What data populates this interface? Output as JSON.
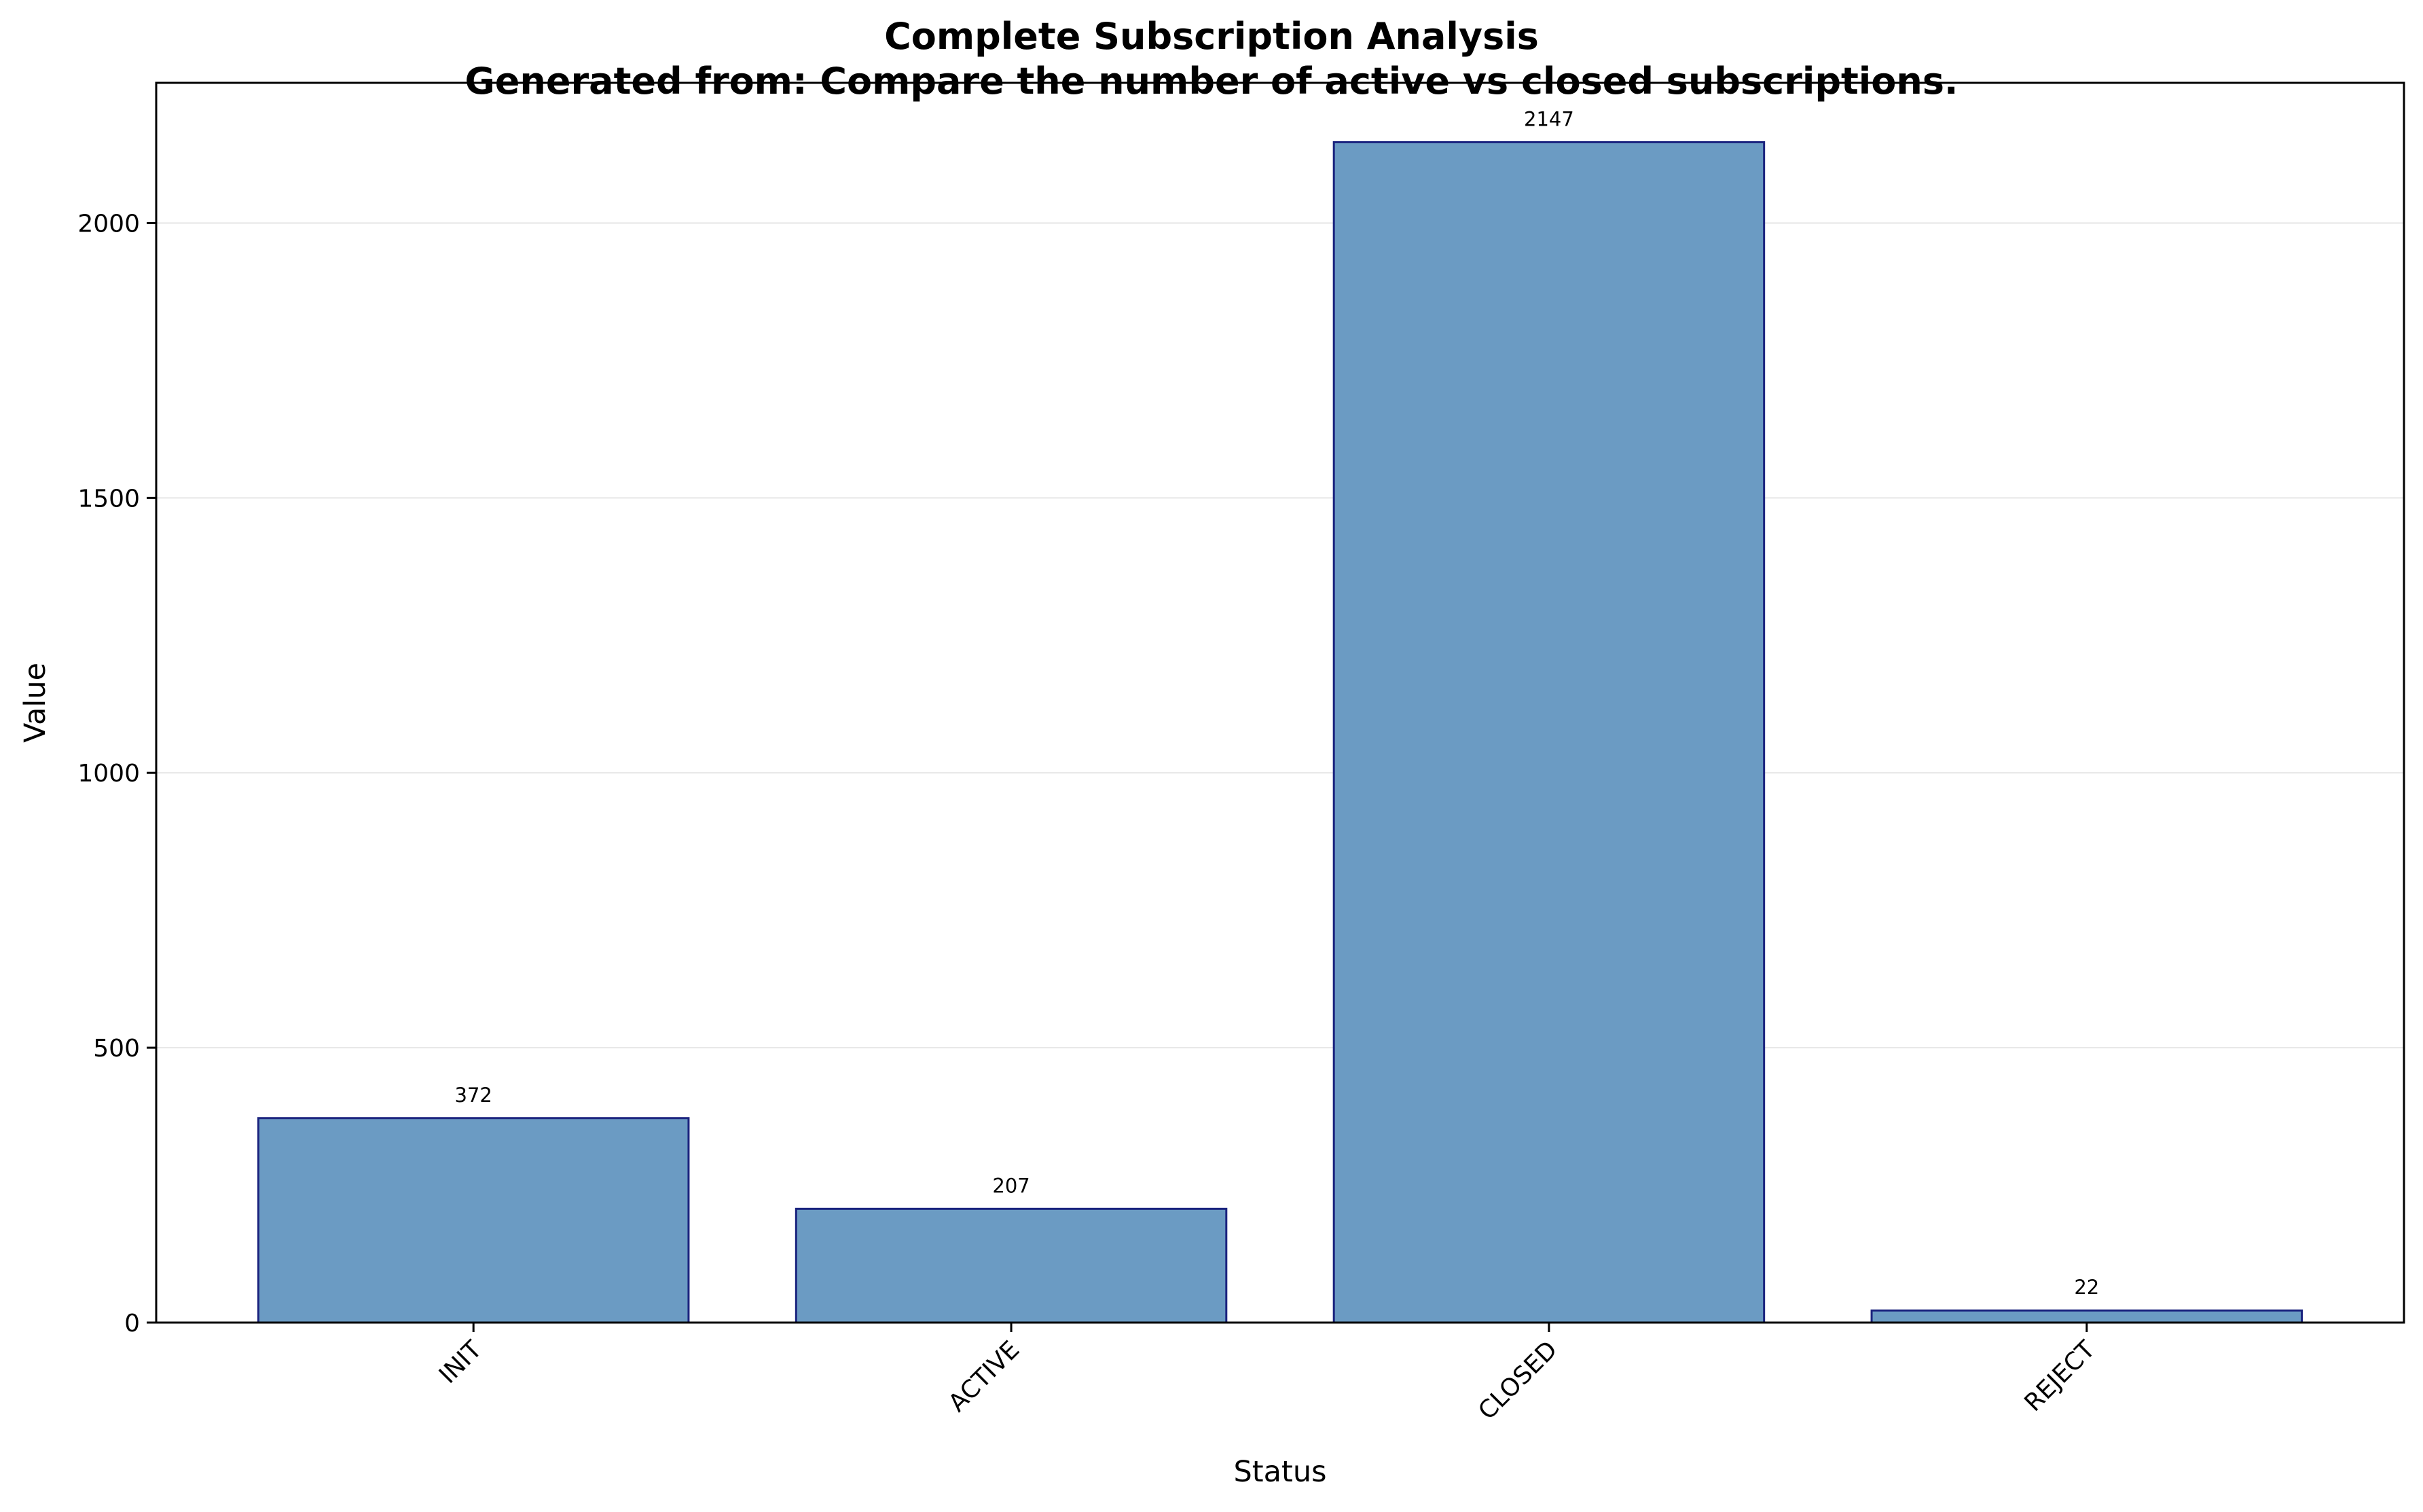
{
  "chart_data": {
    "type": "bar",
    "title": "Complete Subscription Analysis",
    "subtitle": "Generated from: Compare the number of active vs closed subscriptions.",
    "xlabel": "Status",
    "ylabel": "Value",
    "categories": [
      "INIT",
      "ACTIVE",
      "CLOSED",
      "REJECT"
    ],
    "values": [
      372,
      207,
      2147,
      22
    ],
    "data_labels": [
      "372",
      "207",
      "2147",
      "22"
    ],
    "ylim": [
      0,
      2255
    ],
    "yticks": [
      0,
      500,
      1000,
      1500,
      2000
    ],
    "ytick_labels": [
      "0",
      "500",
      "1000",
      "1500",
      "2000"
    ],
    "grid": "horizontal",
    "legend": "none",
    "colors": {
      "bar_fill": "#6b9bc3",
      "bar_edge": "#1a237e",
      "grid": "#e6e6e6"
    }
  }
}
